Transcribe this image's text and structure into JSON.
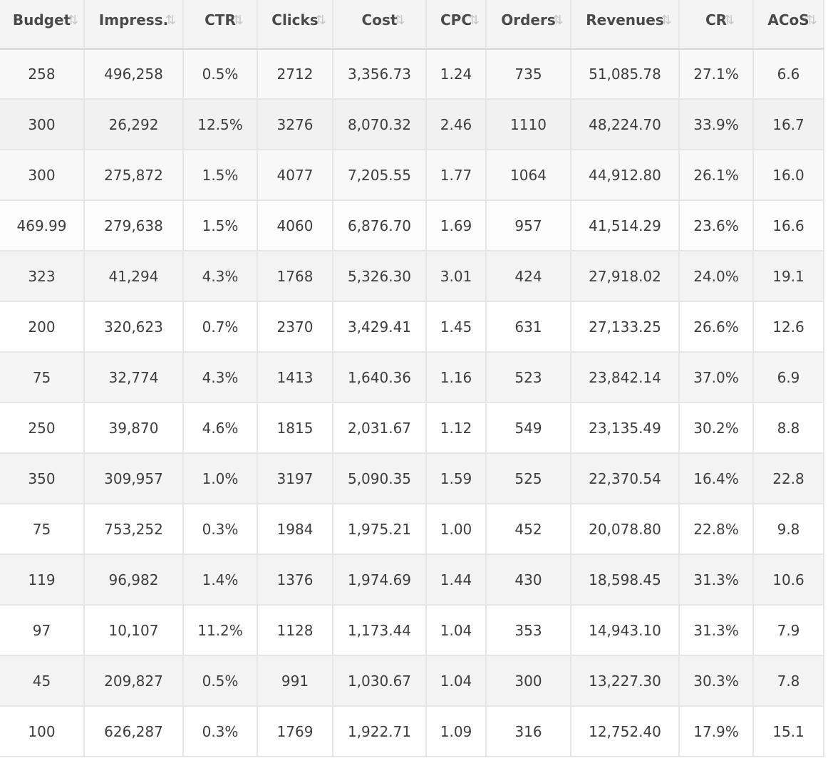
{
  "columns": [
    {
      "label": "Budget"
    },
    {
      "label": "Impress."
    },
    {
      "label": "CTR"
    },
    {
      "label": "Clicks"
    },
    {
      "label": "Cost"
    },
    {
      "label": "CPC"
    },
    {
      "label": "Orders"
    },
    {
      "label": "Revenues"
    },
    {
      "label": "CR"
    },
    {
      "label": "ACoS"
    }
  ],
  "sort_icon": "sort-arrows-icon",
  "sort_glyph": "⇅",
  "rows": [
    [
      "258",
      "496,258",
      "0.5%",
      "2712",
      "3,356.73",
      "1.24",
      "735",
      "51,085.78",
      "27.1%",
      "6.6"
    ],
    [
      "300",
      "26,292",
      "12.5%",
      "3276",
      "8,070.32",
      "2.46",
      "1110",
      "48,224.70",
      "33.9%",
      "16.7"
    ],
    [
      "300",
      "275,872",
      "1.5%",
      "4077",
      "7,205.55",
      "1.77",
      "1064",
      "44,912.80",
      "26.1%",
      "16.0"
    ],
    [
      "469.99",
      "279,638",
      "1.5%",
      "4060",
      "6,876.70",
      "1.69",
      "957",
      "41,514.29",
      "23.6%",
      "16.6"
    ],
    [
      "323",
      "41,294",
      "4.3%",
      "1768",
      "5,326.30",
      "3.01",
      "424",
      "27,918.02",
      "24.0%",
      "19.1"
    ],
    [
      "200",
      "320,623",
      "0.7%",
      "2370",
      "3,429.41",
      "1.45",
      "631",
      "27,133.25",
      "26.6%",
      "12.6"
    ],
    [
      "75",
      "32,774",
      "4.3%",
      "1413",
      "1,640.36",
      "1.16",
      "523",
      "23,842.14",
      "37.0%",
      "6.9"
    ],
    [
      "250",
      "39,870",
      "4.6%",
      "1815",
      "2,031.67",
      "1.12",
      "549",
      "23,135.49",
      "30.2%",
      "8.8"
    ],
    [
      "350",
      "309,957",
      "1.0%",
      "3197",
      "5,090.35",
      "1.59",
      "525",
      "22,370.54",
      "16.4%",
      "22.8"
    ],
    [
      "75",
      "753,252",
      "0.3%",
      "1984",
      "1,975.21",
      "1.00",
      "452",
      "20,078.80",
      "22.8%",
      "9.8"
    ],
    [
      "119",
      "96,982",
      "1.4%",
      "1376",
      "1,974.69",
      "1.44",
      "430",
      "18,598.45",
      "31.3%",
      "10.6"
    ],
    [
      "97",
      "10,107",
      "11.2%",
      "1128",
      "1,173.44",
      "1.04",
      "353",
      "14,943.10",
      "31.3%",
      "7.9"
    ],
    [
      "45",
      "209,827",
      "0.5%",
      "991",
      "1,030.67",
      "1.04",
      "300",
      "13,227.30",
      "30.3%",
      "7.8"
    ],
    [
      "100",
      "626,287",
      "0.3%",
      "1769",
      "1,922.71",
      "1.09",
      "316",
      "12,752.40",
      "17.9%",
      "15.1"
    ]
  ]
}
